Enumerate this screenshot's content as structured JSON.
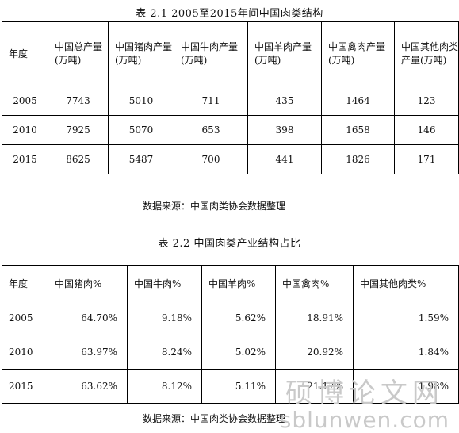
{
  "table1": {
    "caption": "表 2.1 2005至2015年间中国肉类结构",
    "headers": [
      "年度",
      "中国总产量(万吨)",
      "中国猪肉产量(万吨)",
      "中国牛肉产量(万吨)",
      "中国羊肉产量(万吨)",
      "中国禽肉产量(万吨)",
      "中国其他肉类产量(万吨)"
    ],
    "rows": [
      [
        "2005",
        "7743",
        "5010",
        "711",
        "435",
        "1464",
        "123"
      ],
      [
        "2010",
        "7925",
        "5070",
        "653",
        "398",
        "1658",
        "146"
      ],
      [
        "2015",
        "8625",
        "5487",
        "700",
        "441",
        "1826",
        "171"
      ]
    ],
    "source": "数据来源：中国肉类协会数据整理"
  },
  "table2": {
    "caption": "表 2.2 中国肉类产业结构占比",
    "headers": [
      "年度",
      "中国猪肉%",
      "中国牛肉%",
      "中国羊肉%",
      "中国禽肉%",
      "中国其他肉类%"
    ],
    "rows": [
      [
        "2005",
        "64.70%",
        "9.18%",
        "5.62%",
        "18.91%",
        "1.59%"
      ],
      [
        "2010",
        "63.97%",
        "8.24%",
        "5.02%",
        "20.92%",
        "1.84%"
      ],
      [
        "2015",
        "63.62%",
        "8.12%",
        "5.11%",
        "21.17%",
        "1.98%"
      ]
    ],
    "source": "数据来源：中国肉类协会数据整理"
  },
  "watermark": {
    "chinese": "硕博论文网",
    "url": "sblunwen.com"
  }
}
